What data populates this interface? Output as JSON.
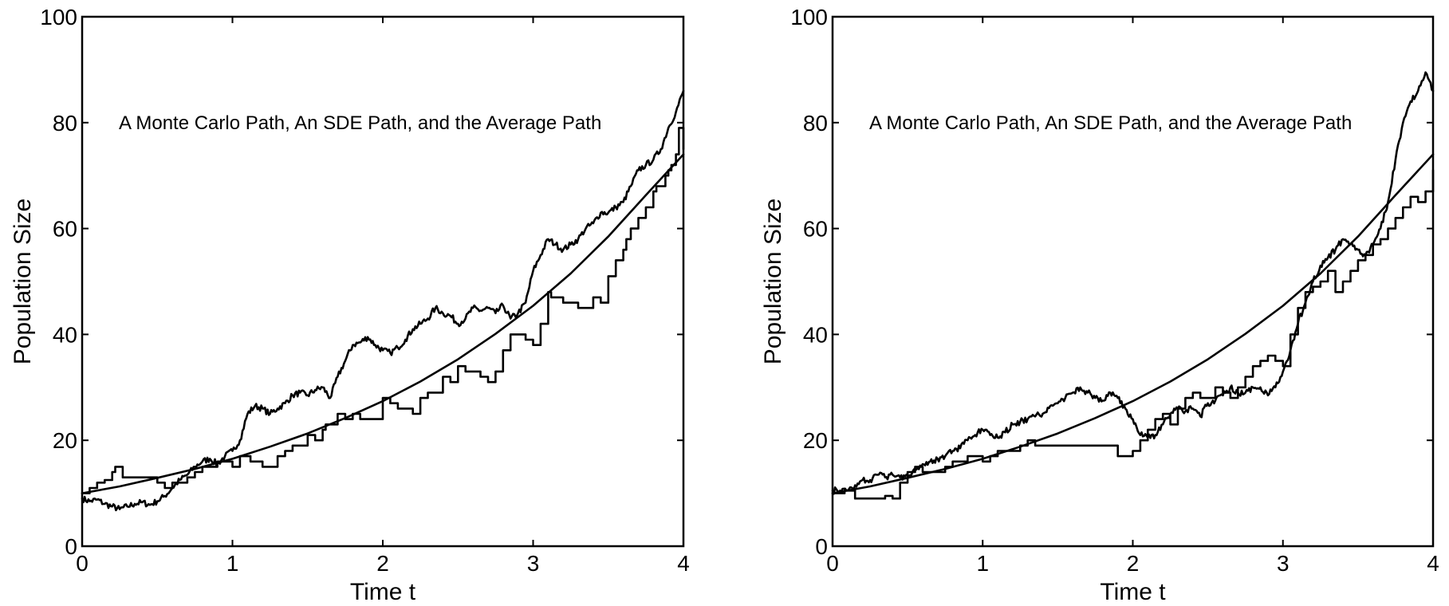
{
  "chart_data": [
    {
      "type": "line",
      "annotation": "A Monte Carlo Path, An SDE Path, and the Average Path",
      "xlabel": "Time t",
      "ylabel": "Population Size",
      "xlim": [
        0,
        4
      ],
      "ylim": [
        0,
        100
      ],
      "xticks": [
        "0",
        "1",
        "2",
        "3",
        "4"
      ],
      "yticks": [
        "0",
        "20",
        "40",
        "60",
        "80",
        "100"
      ],
      "grid": false,
      "series": [
        {
          "kind": "smooth",
          "x": [
            0,
            0.25,
            0.5,
            0.75,
            1.0,
            1.25,
            1.5,
            1.75,
            2.0,
            2.25,
            2.5,
            2.75,
            3.0,
            3.25,
            3.5,
            3.75,
            4.0
          ],
          "y": [
            10,
            11.3,
            12.9,
            14.6,
            16.5,
            18.8,
            21.3,
            24.2,
            27.4,
            31.1,
            35.3,
            40.1,
            45.4,
            51.5,
            58.5,
            66.3,
            74
          ]
        },
        {
          "kind": "step",
          "x": [
            0,
            0.05,
            0.1,
            0.15,
            0.2,
            0.22,
            0.27,
            0.5,
            0.55,
            0.6,
            0.7,
            0.75,
            0.8,
            0.9,
            1.0,
            1.05,
            1.12,
            1.2,
            1.3,
            1.35,
            1.4,
            1.5,
            1.55,
            1.6,
            1.62,
            1.7,
            1.75,
            1.8,
            1.85,
            1.95,
            2.0,
            2.05,
            2.1,
            2.2,
            2.25,
            2.3,
            2.4,
            2.45,
            2.5,
            2.55,
            2.65,
            2.7,
            2.75,
            2.8,
            2.85,
            2.95,
            3.0,
            3.05,
            3.1,
            3.12,
            3.2,
            3.3,
            3.4,
            3.45,
            3.5,
            3.55,
            3.6,
            3.62,
            3.65,
            3.7,
            3.75,
            3.8,
            3.82,
            3.88,
            3.9,
            3.92,
            3.95,
            3.97,
            4.0
          ],
          "y": [
            10,
            11,
            12,
            12.5,
            14,
            15,
            13,
            12,
            11,
            12,
            13,
            14,
            15,
            16,
            15,
            17,
            16,
            15,
            17,
            18,
            19,
            21,
            20,
            22,
            23,
            25,
            24,
            25,
            24,
            24,
            28,
            27,
            26,
            25,
            28,
            29,
            32,
            31,
            34,
            33,
            32,
            31,
            33,
            37,
            40,
            39,
            38,
            42,
            48,
            47,
            46,
            45,
            47,
            46,
            51,
            54,
            56,
            58,
            60,
            62,
            64,
            67,
            68,
            70,
            71,
            72,
            74,
            79,
            75
          ]
        },
        {
          "kind": "noisy",
          "x": [
            0,
            0.05,
            0.1,
            0.15,
            0.2,
            0.25,
            0.3,
            0.35,
            0.4,
            0.45,
            0.5,
            0.55,
            0.6,
            0.65,
            0.7,
            0.75,
            0.8,
            0.85,
            0.9,
            0.95,
            1.0,
            1.05,
            1.1,
            1.15,
            1.2,
            1.25,
            1.3,
            1.35,
            1.4,
            1.45,
            1.5,
            1.55,
            1.6,
            1.65,
            1.7,
            1.75,
            1.8,
            1.85,
            1.9,
            1.95,
            2.0,
            2.05,
            2.1,
            2.15,
            2.2,
            2.25,
            2.3,
            2.35,
            2.4,
            2.45,
            2.5,
            2.55,
            2.6,
            2.65,
            2.7,
            2.75,
            2.8,
            2.85,
            2.9,
            2.95,
            3.0,
            3.05,
            3.1,
            3.15,
            3.2,
            3.25,
            3.3,
            3.35,
            3.4,
            3.45,
            3.5,
            3.55,
            3.6,
            3.65,
            3.7,
            3.75,
            3.8,
            3.85,
            3.9,
            3.95,
            4.0
          ],
          "y": [
            9,
            8.5,
            8.8,
            8,
            7.5,
            7,
            7.5,
            8,
            8.3,
            7.8,
            8.5,
            9.5,
            11,
            12.5,
            13.5,
            15,
            16,
            16.5,
            15.5,
            17,
            18,
            20,
            25,
            26.5,
            26,
            25,
            26,
            27,
            28.5,
            29,
            28.5,
            29.5,
            30,
            28,
            32,
            35,
            38,
            38.5,
            39.5,
            38,
            37,
            36.5,
            37.5,
            39,
            41,
            42,
            43,
            45,
            44,
            43.5,
            42,
            43,
            45,
            44.5,
            45,
            44,
            45.5,
            43,
            44,
            46,
            52,
            55,
            58,
            57,
            56,
            57,
            58,
            60,
            61,
            63,
            63,
            64,
            65,
            68,
            71,
            72,
            73,
            75,
            79,
            82,
            86
          ]
        }
      ]
    },
    {
      "type": "line",
      "annotation": "A Monte Carlo Path, An SDE Path, and the Average Path",
      "xlabel": "Time t",
      "ylabel": "Population Size",
      "xlim": [
        0,
        4
      ],
      "ylim": [
        0,
        100
      ],
      "xticks": [
        "0",
        "1",
        "2",
        "3",
        "4"
      ],
      "yticks": [
        "0",
        "20",
        "40",
        "60",
        "80",
        "100"
      ],
      "grid": false,
      "series": [
        {
          "kind": "smooth",
          "x": [
            0,
            0.25,
            0.5,
            0.75,
            1.0,
            1.25,
            1.5,
            1.75,
            2.0,
            2.25,
            2.5,
            2.75,
            3.0,
            3.25,
            3.5,
            3.75,
            4.0
          ],
          "y": [
            10,
            11.3,
            12.9,
            14.6,
            16.5,
            18.8,
            21.3,
            24.2,
            27.4,
            31.1,
            35.3,
            40.1,
            45.4,
            51.5,
            58.5,
            66.3,
            74
          ]
        },
        {
          "kind": "step",
          "x": [
            0,
            0.08,
            0.15,
            0.2,
            0.3,
            0.35,
            0.4,
            0.45,
            0.5,
            0.55,
            0.6,
            0.75,
            0.8,
            0.9,
            1.0,
            1.05,
            1.1,
            1.2,
            1.25,
            1.3,
            1.35,
            1.5,
            1.8,
            1.9,
            1.95,
            2.0,
            2.05,
            2.1,
            2.15,
            2.2,
            2.25,
            2.3,
            2.35,
            2.4,
            2.45,
            2.5,
            2.55,
            2.6,
            2.65,
            2.7,
            2.75,
            2.8,
            2.85,
            2.9,
            2.95,
            3.0,
            3.05,
            3.1,
            3.15,
            3.2,
            3.25,
            3.3,
            3.35,
            3.4,
            3.45,
            3.5,
            3.55,
            3.6,
            3.65,
            3.7,
            3.75,
            3.8,
            3.85,
            3.9,
            3.95,
            4.0
          ],
          "y": [
            10,
            10.5,
            9,
            9,
            9,
            9.5,
            9,
            12,
            14,
            15,
            14,
            15,
            16,
            17,
            16,
            17,
            18,
            18,
            19,
            20,
            19,
            19,
            19,
            17,
            17,
            18,
            20,
            22,
            24,
            25,
            23,
            26,
            28,
            29,
            28,
            28,
            30,
            29,
            28,
            30,
            32,
            34,
            35,
            36,
            35,
            34,
            40,
            45,
            48,
            49,
            50,
            52,
            48,
            50,
            52,
            54,
            55,
            57,
            58,
            60,
            62,
            64,
            66,
            65,
            67,
            71
          ]
        },
        {
          "kind": "noisy",
          "x": [
            0,
            0.05,
            0.1,
            0.15,
            0.2,
            0.25,
            0.3,
            0.35,
            0.4,
            0.45,
            0.5,
            0.55,
            0.6,
            0.65,
            0.7,
            0.75,
            0.8,
            0.85,
            0.9,
            0.95,
            1.0,
            1.05,
            1.1,
            1.15,
            1.2,
            1.25,
            1.3,
            1.35,
            1.4,
            1.45,
            1.5,
            1.55,
            1.6,
            1.65,
            1.7,
            1.75,
            1.8,
            1.85,
            1.9,
            1.95,
            2.0,
            2.05,
            2.1,
            2.15,
            2.2,
            2.25,
            2.3,
            2.35,
            2.4,
            2.45,
            2.5,
            2.55,
            2.6,
            2.65,
            2.7,
            2.75,
            2.8,
            2.85,
            2.9,
            2.95,
            3.0,
            3.05,
            3.1,
            3.15,
            3.2,
            3.25,
            3.3,
            3.35,
            3.4,
            3.45,
            3.5,
            3.55,
            3.6,
            3.65,
            3.7,
            3.75,
            3.8,
            3.85,
            3.9,
            3.95,
            4.0
          ],
          "y": [
            10.5,
            10.5,
            10.5,
            11.5,
            12.5,
            12.5,
            13.5,
            13,
            13.5,
            13,
            13.5,
            14.5,
            15.5,
            16,
            16.5,
            17,
            18,
            18.5,
            20,
            21,
            22,
            21,
            20.5,
            21.5,
            23,
            23.5,
            24,
            24.5,
            25,
            26.5,
            27,
            28,
            29,
            30,
            29,
            28,
            27.5,
            29,
            28,
            26,
            24,
            21,
            20.5,
            21,
            23,
            25,
            26,
            25.5,
            26,
            24.5,
            27,
            27.5,
            28.5,
            30,
            29,
            29,
            30,
            30,
            28.5,
            30,
            33,
            37,
            42,
            46,
            50,
            53,
            54.5,
            56,
            58,
            57,
            56,
            55,
            57,
            60,
            65,
            73,
            80,
            84,
            86,
            89.5,
            86
          ]
        }
      ]
    }
  ]
}
